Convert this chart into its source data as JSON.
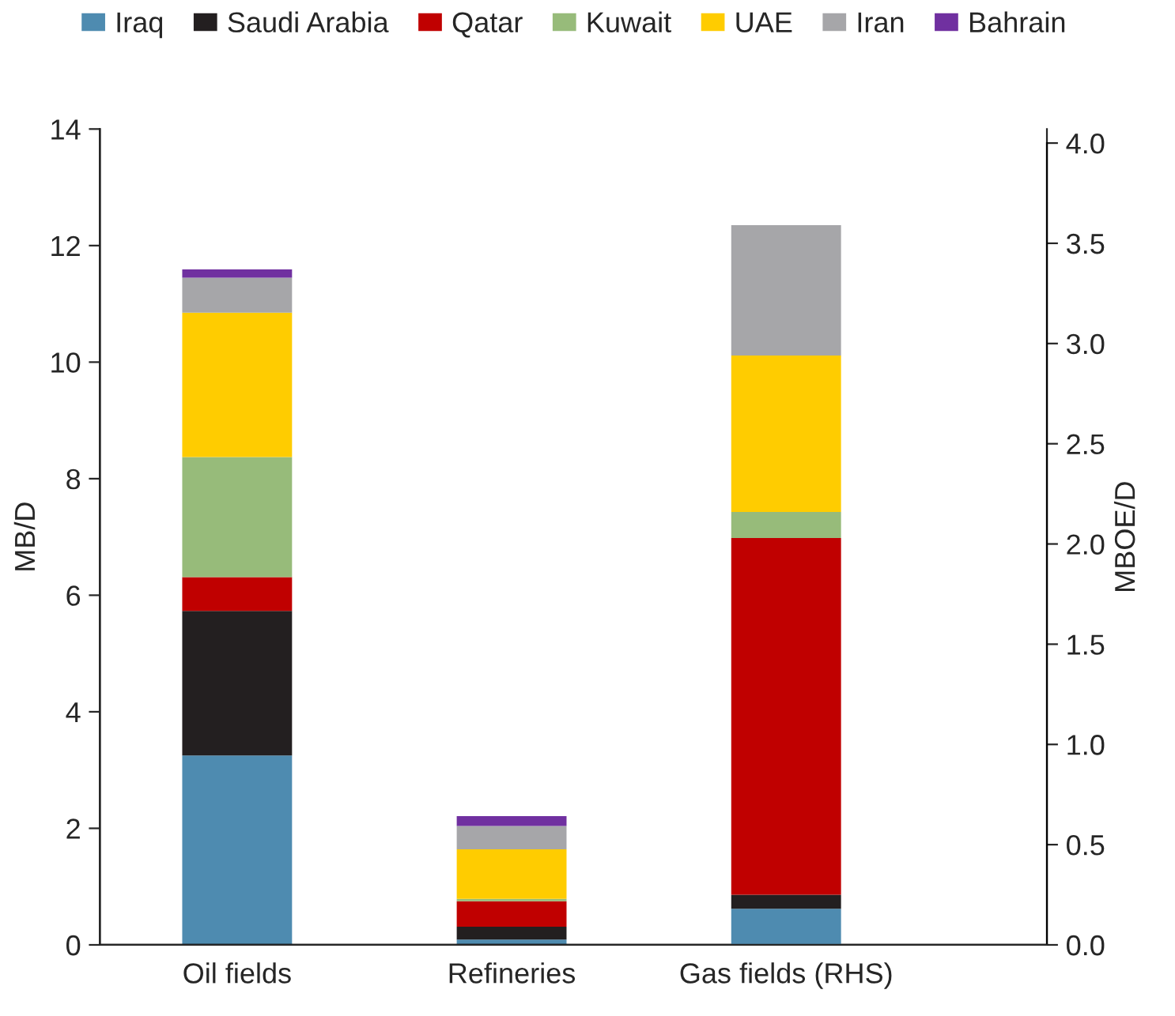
{
  "chart_data": {
    "type": "bar",
    "stacked": true,
    "ylabel": "MB/D",
    "y2label": "MBOE/D",
    "categories": [
      "Oil fields",
      "Refineries",
      "Gas fields (RHS)"
    ],
    "ylim": [
      0,
      14
    ],
    "yticks": [
      0,
      2,
      4,
      6,
      8,
      10,
      12,
      14
    ],
    "y2lim": [
      0,
      4.07
    ],
    "y2ticks": [
      {
        "value": 0,
        "label": "0.0"
      },
      {
        "value": 0.5,
        "label": "0.5"
      },
      {
        "value": 1,
        "label": "1.0"
      },
      {
        "value": 1.5,
        "label": "1.5"
      },
      {
        "value": 2,
        "label": "2.0"
      },
      {
        "value": 2.5,
        "label": "2.5"
      },
      {
        "value": 3,
        "label": "3.0"
      },
      {
        "value": 3.5,
        "label": "3.5"
      },
      {
        "value": 4,
        "label": "4.0"
      }
    ],
    "grid": false,
    "legend": "top",
    "series": [
      {
        "name": "Iraq",
        "color": "#4e8bb0",
        "values": [
          3.25,
          0.09,
          null
        ]
      },
      {
        "name": "Saudi Arabia",
        "color": "#231f20",
        "values": [
          2.48,
          0.22,
          null
        ]
      },
      {
        "name": "Qatar",
        "color": "#c00000",
        "values": [
          0.58,
          0.44,
          null
        ]
      },
      {
        "name": "Kuwait",
        "color": "#97bb7a",
        "values": [
          2.06,
          0.04,
          null
        ]
      },
      {
        "name": "UAE",
        "color": "#ffcc00",
        "values": [
          2.48,
          0.85,
          null
        ]
      },
      {
        "name": "Iran",
        "color": "#a6a6a9",
        "values": [
          0.6,
          0.4,
          null
        ]
      },
      {
        "name": "Bahrain",
        "color": "#7030a0",
        "values": [
          0.14,
          0.17,
          null
        ]
      },
      {
        "color": "#4e8bb0",
        "axis": "y2",
        "values": [
          null,
          null,
          0.18
        ]
      },
      {
        "color": "#231f20",
        "axis": "y2",
        "values": [
          null,
          null,
          0.07
        ]
      },
      {
        "color": "#c00000",
        "axis": "y2",
        "values": [
          null,
          null,
          1.78
        ]
      },
      {
        "color": "#97bb7a",
        "axis": "y2",
        "values": [
          null,
          null,
          0.13
        ]
      },
      {
        "color": "#ffcc00",
        "axis": "y2",
        "values": [
          null,
          null,
          0.78
        ]
      },
      {
        "color": "#a6a6a9",
        "axis": "y2",
        "values": [
          null,
          null,
          0.65
        ]
      }
    ]
  }
}
